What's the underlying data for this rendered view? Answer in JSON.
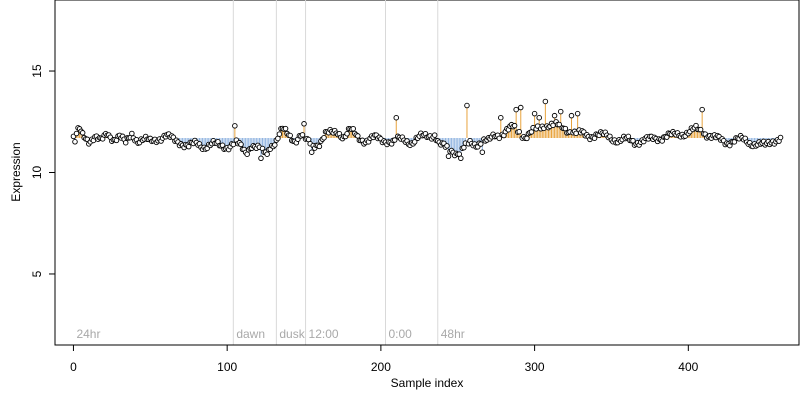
{
  "chart_data": {
    "type": "scatter",
    "title": "",
    "xlabel": "Sample index",
    "ylabel": "Expression",
    "xlim": [
      -12,
      472
    ],
    "ylim": [
      1.5,
      18.5
    ],
    "xticks": [
      0,
      100,
      200,
      300,
      400
    ],
    "yticks": [
      5,
      10,
      15
    ],
    "baseline": 11.7,
    "grid": false,
    "legend": "none",
    "colors": {
      "point_fill": "#ffffff",
      "point_stroke": "#000000",
      "above_line": "#e8a33d",
      "below_line": "#8fb3e0",
      "period_line": "#d9d9d9",
      "period_label": "#a9a9a9"
    },
    "periods": [
      {
        "label": "24hr",
        "x": 0
      },
      {
        "label": "dawn",
        "x": 104
      },
      {
        "label": "dusk",
        "x": 132
      },
      {
        "label": "12:00",
        "x": 151
      },
      {
        "label": "0:00",
        "x": 203
      },
      {
        "label": "48hr",
        "x": 237
      }
    ],
    "anchors": [
      [
        1,
        11.5
      ],
      [
        3,
        12.2
      ],
      [
        6,
        11.8
      ],
      [
        10,
        11.6
      ],
      [
        14,
        11.8
      ],
      [
        18,
        11.5
      ],
      [
        22,
        11.9
      ],
      [
        26,
        11.7
      ],
      [
        30,
        11.8
      ],
      [
        34,
        11.4
      ],
      [
        38,
        11.9
      ],
      [
        42,
        11.6
      ],
      [
        46,
        11.6
      ],
      [
        50,
        11.5
      ],
      [
        55,
        11.7
      ],
      [
        60,
        11.8
      ],
      [
        65,
        11.6
      ],
      [
        70,
        11.5
      ],
      [
        75,
        11.3
      ],
      [
        80,
        11.4
      ],
      [
        85,
        11.3
      ],
      [
        90,
        11.4
      ],
      [
        95,
        11.3
      ],
      [
        100,
        11.3
      ],
      [
        103,
        11.4
      ],
      [
        105,
        11.5
      ],
      [
        108,
        11.3
      ],
      [
        112,
        11.0
      ],
      [
        116,
        11.4
      ],
      [
        120,
        11.2
      ],
      [
        124,
        10.9
      ],
      [
        128,
        11.3
      ],
      [
        132,
        11.6
      ],
      [
        134,
        11.9
      ],
      [
        136,
        12.1
      ],
      [
        140,
        11.8
      ],
      [
        144,
        11.6
      ],
      [
        148,
        11.9
      ],
      [
        152,
        11.5
      ],
      [
        156,
        11.3
      ],
      [
        160,
        11.5
      ],
      [
        164,
        11.9
      ],
      [
        168,
        11.9
      ],
      [
        172,
        12.0
      ],
      [
        176,
        11.8
      ],
      [
        180,
        12.1
      ],
      [
        185,
        11.7
      ],
      [
        190,
        11.6
      ],
      [
        195,
        11.7
      ],
      [
        200,
        11.6
      ],
      [
        204,
        11.6
      ],
      [
        208,
        11.5
      ],
      [
        212,
        11.6
      ],
      [
        216,
        11.6
      ],
      [
        220,
        11.5
      ],
      [
        225,
        11.7
      ],
      [
        230,
        11.8
      ],
      [
        235,
        11.9
      ],
      [
        238,
        11.4
      ],
      [
        242,
        11.2
      ],
      [
        246,
        11.1
      ],
      [
        250,
        11.0
      ],
      [
        254,
        11.2
      ],
      [
        258,
        11.4
      ],
      [
        262,
        11.4
      ],
      [
        266,
        11.6
      ],
      [
        270,
        11.5
      ],
      [
        274,
        11.8
      ],
      [
        278,
        11.9
      ],
      [
        282,
        12.1
      ],
      [
        286,
        12.2
      ],
      [
        290,
        12.0
      ],
      [
        294,
        11.8
      ],
      [
        298,
        12.0
      ],
      [
        302,
        12.1
      ],
      [
        306,
        12.3
      ],
      [
        310,
        12.4
      ],
      [
        314,
        12.3
      ],
      [
        318,
        12.2
      ],
      [
        322,
        12.1
      ],
      [
        326,
        12.0
      ],
      [
        330,
        11.9
      ],
      [
        335,
        11.8
      ],
      [
        340,
        11.9
      ],
      [
        345,
        11.8
      ],
      [
        350,
        11.7
      ],
      [
        355,
        11.6
      ],
      [
        360,
        11.6
      ],
      [
        365,
        11.5
      ],
      [
        370,
        11.6
      ],
      [
        375,
        11.6
      ],
      [
        380,
        11.7
      ],
      [
        385,
        11.8
      ],
      [
        390,
        11.8
      ],
      [
        395,
        11.9
      ],
      [
        400,
        12.0
      ],
      [
        405,
        12.1
      ],
      [
        410,
        12.0
      ],
      [
        415,
        11.8
      ],
      [
        420,
        11.6
      ],
      [
        425,
        11.5
      ],
      [
        430,
        11.6
      ],
      [
        435,
        11.6
      ],
      [
        440,
        11.5
      ],
      [
        445,
        11.4
      ],
      [
        450,
        11.3
      ],
      [
        455,
        11.6
      ],
      [
        460,
        11.7
      ]
    ],
    "spikes": [
      [
        3,
        12.2
      ],
      [
        105,
        12.3
      ],
      [
        150,
        12.4
      ],
      [
        210,
        12.7
      ],
      [
        256,
        13.3
      ],
      [
        278,
        12.7
      ],
      [
        288,
        13.1
      ],
      [
        291,
        13.2
      ],
      [
        300,
        12.9
      ],
      [
        303,
        12.7
      ],
      [
        307,
        13.5
      ],
      [
        313,
        12.8
      ],
      [
        317,
        13.0
      ],
      [
        324,
        12.8
      ],
      [
        328,
        12.9
      ],
      [
        409,
        13.1
      ]
    ],
    "dips": [
      [
        113,
        10.9
      ],
      [
        122,
        10.7
      ],
      [
        126,
        10.9
      ],
      [
        155,
        11.0
      ],
      [
        244,
        10.8
      ],
      [
        252,
        10.7
      ],
      [
        266,
        11.0
      ]
    ]
  }
}
